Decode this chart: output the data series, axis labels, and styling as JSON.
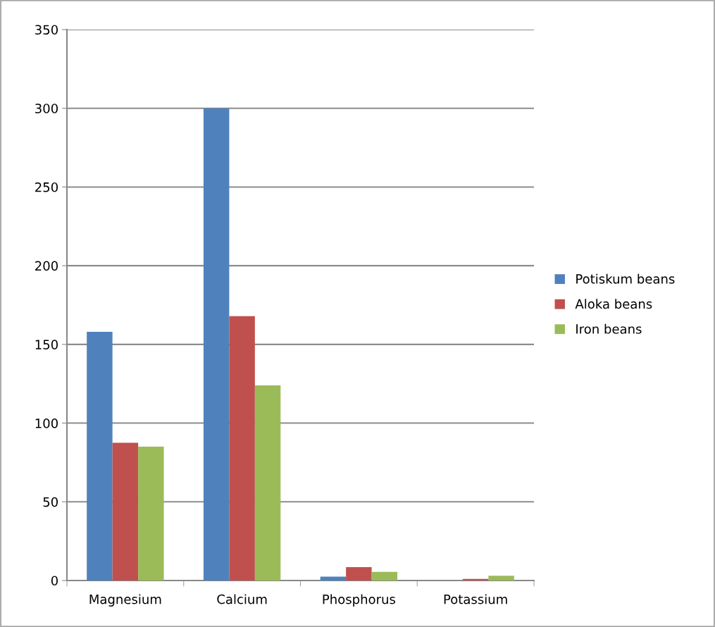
{
  "chart_data": {
    "type": "bar",
    "categories": [
      "Magnesium",
      "Calcium",
      "Phosphorus",
      "Potassium"
    ],
    "series": [
      {
        "name": "Potiskum beans",
        "color": "#4f81bd",
        "values": [
          158,
          300,
          2.5,
          0
        ]
      },
      {
        "name": "Aloka beans",
        "color": "#c0504d",
        "values": [
          87.5,
          168,
          8.5,
          1
        ]
      },
      {
        "name": "Iron beans",
        "color": "#9bbb59",
        "values": [
          85,
          124,
          5.5,
          3
        ]
      }
    ],
    "ylim": [
      0,
      350
    ],
    "yticks": [
      0,
      50,
      100,
      150,
      200,
      250,
      300,
      350
    ],
    "grid": "y",
    "legend": "right"
  }
}
